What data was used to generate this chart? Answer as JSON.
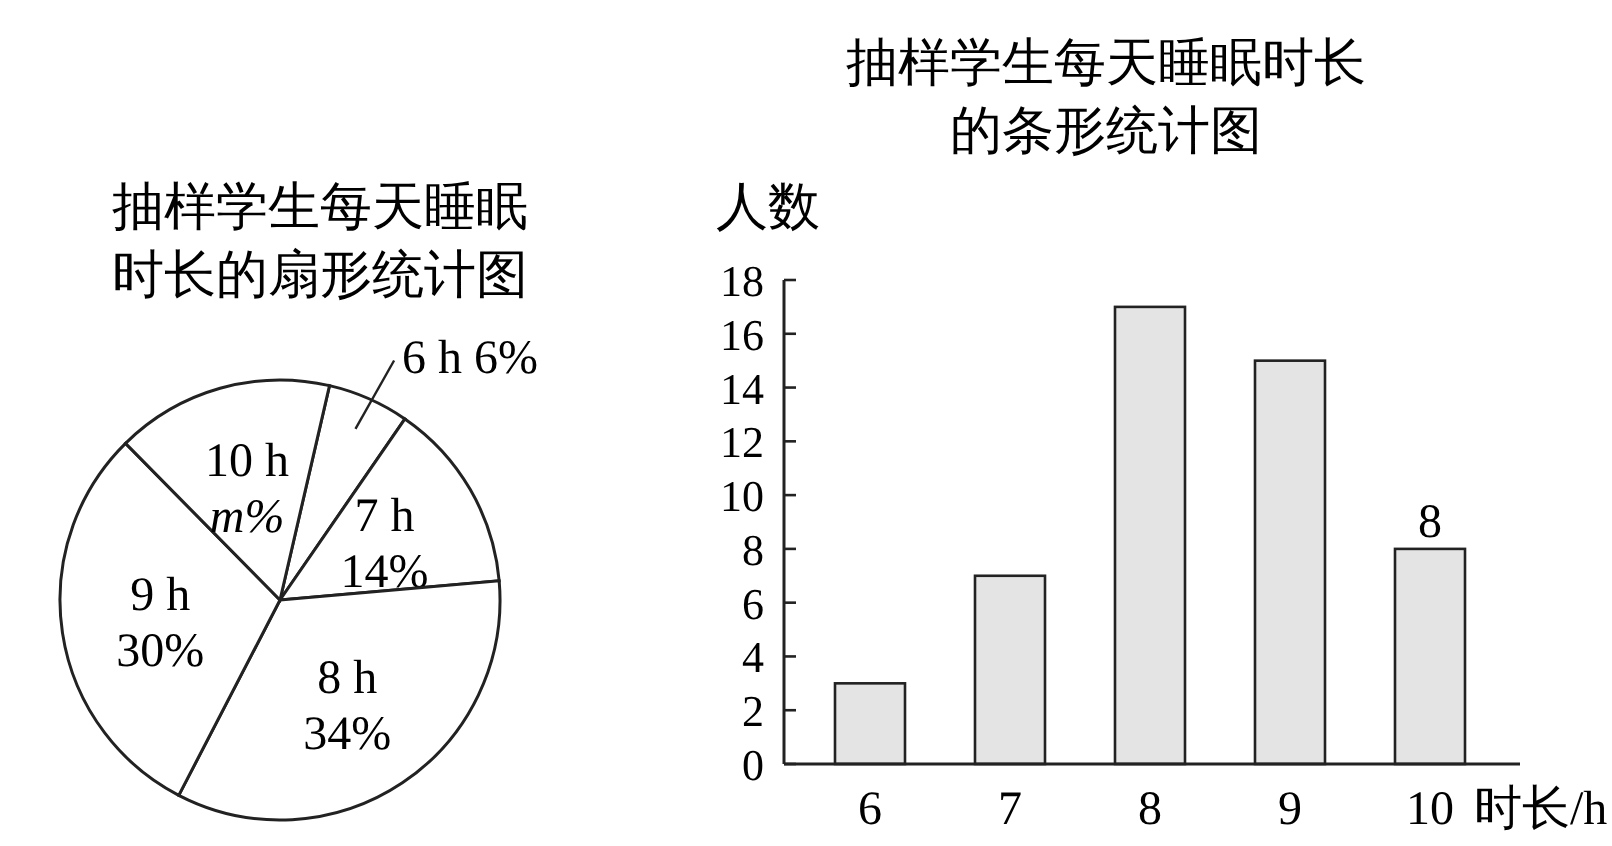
{
  "chart_data": [
    {
      "type": "pie",
      "title": "抽样学生每天睡眠时长的扇形统计图",
      "categories": [
        "6 h",
        "7 h",
        "8 h",
        "9 h",
        "10 h"
      ],
      "values": [
        6,
        14,
        34,
        30,
        16
      ],
      "value_labels": [
        "6%",
        "14%",
        "34%",
        "30%",
        "m%"
      ],
      "colors": [
        "#ffffff",
        "#ffffff",
        "#ffffff",
        "#ffffff",
        "#ffffff"
      ]
    },
    {
      "type": "bar",
      "title": "抽样学生每天睡眠时长的条形统计图",
      "categories": [
        "6",
        "7",
        "8",
        "9",
        "10"
      ],
      "values": [
        3,
        7,
        17,
        15,
        8
      ],
      "color": "#e4e4e4",
      "value_labels": [
        null,
        null,
        null,
        null,
        "8"
      ],
      "ylabel": "人数",
      "xlabel": "时长/h",
      "ylim": [
        0,
        18
      ],
      "yticks": [
        0,
        2,
        4,
        6,
        8,
        10,
        12,
        14,
        16,
        18
      ],
      "grid": false
    }
  ]
}
